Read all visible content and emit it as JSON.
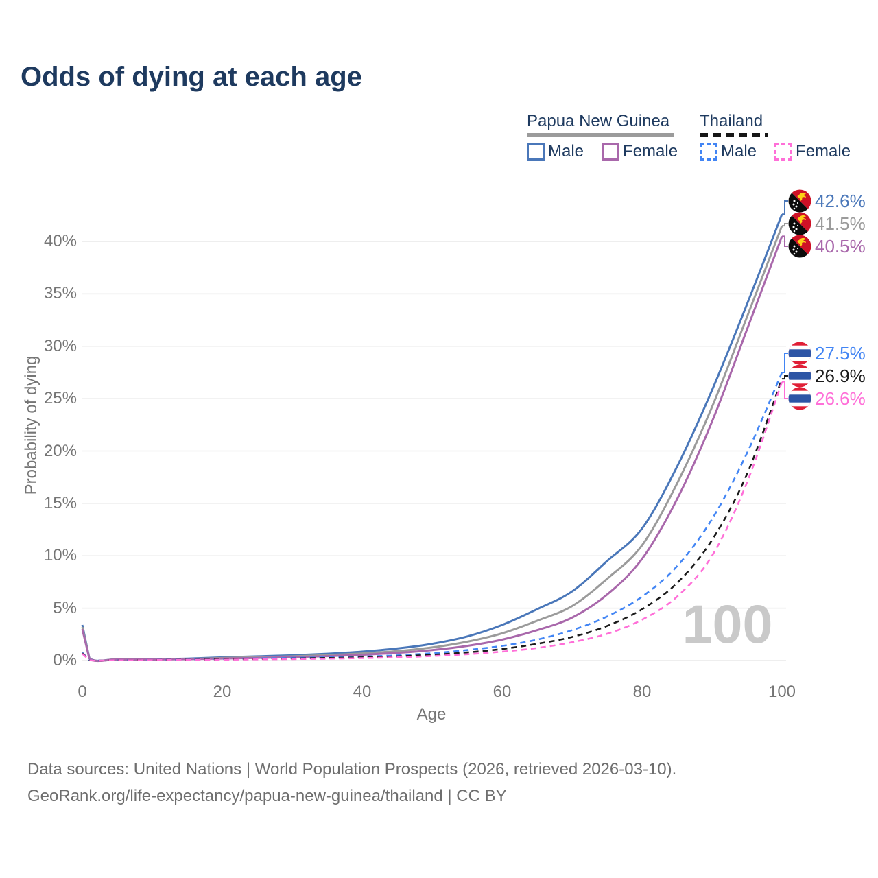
{
  "title": "Odds of dying at each age",
  "legend": {
    "groups": [
      {
        "label": "Papua New Guinea",
        "line_style": "solid",
        "underline_color": "#9b9b9b"
      },
      {
        "label": "Thailand",
        "line_style": "dashed",
        "underline_color": "#161616"
      }
    ],
    "items": [
      {
        "label": "Male",
        "country": "Papua New Guinea",
        "color": "#4a77b9",
        "dashed": false
      },
      {
        "label": "Female",
        "country": "Papua New Guinea",
        "color": "#a968ab",
        "dashed": false
      },
      {
        "label": "Male",
        "country": "Thailand",
        "color": "#4285f4",
        "dashed": true
      },
      {
        "label": "Female",
        "country": "Thailand",
        "color": "#ff6fd8",
        "dashed": true
      }
    ]
  },
  "watermark": "100",
  "footer": {
    "line1": "Data sources: United Nations | World Population Prospects (2026, retrieved 2026-03-10).",
    "line2": "GeoRank.org/life-expectancy/papua-new-guinea/thailand | CC BY"
  },
  "chart_data": {
    "type": "line",
    "title": "Odds of dying at each age",
    "xlabel": "Age",
    "ylabel": "Probability of dying",
    "xlim": [
      0,
      100
    ],
    "ylim": [
      0,
      44
    ],
    "x_ticks": [
      0,
      20,
      40,
      60,
      80,
      100
    ],
    "y_ticks": [
      0,
      5,
      10,
      15,
      20,
      25,
      30,
      35,
      40
    ],
    "y_tick_labels": [
      "0%",
      "5%",
      "10%",
      "15%",
      "20%",
      "25%",
      "30%",
      "35%",
      "40%"
    ],
    "grid": "horizontal-only",
    "legend_position": "top-right",
    "x": [
      0,
      1,
      5,
      10,
      15,
      20,
      25,
      30,
      35,
      40,
      45,
      50,
      55,
      60,
      65,
      70,
      75,
      80,
      85,
      90,
      95,
      100
    ],
    "series": [
      {
        "name": "Papua New Guinea — Male",
        "country": "Papua New Guinea",
        "sex": "male",
        "style": "solid",
        "color": "#4a77b9",
        "end_value": 42.6,
        "end_label": "42.6%",
        "flag": "papua-new-guinea",
        "values": [
          3.4,
          0.25,
          0.12,
          0.12,
          0.18,
          0.3,
          0.4,
          0.5,
          0.65,
          0.85,
          1.15,
          1.6,
          2.3,
          3.4,
          4.9,
          6.6,
          9.5,
          12.6,
          18.5,
          25.8,
          34.0,
          42.6
        ]
      },
      {
        "name": "Papua New Guinea — Both sexes",
        "country": "Papua New Guinea",
        "sex": "both",
        "style": "solid",
        "color": "#9b9b9b",
        "end_value": 41.5,
        "end_label": "41.5%",
        "flag": "papua-new-guinea",
        "values": [
          3.2,
          0.22,
          0.11,
          0.11,
          0.15,
          0.24,
          0.32,
          0.4,
          0.52,
          0.68,
          0.9,
          1.25,
          1.8,
          2.6,
          3.8,
          5.2,
          7.8,
          11.0,
          16.9,
          24.2,
          32.8,
          41.5
        ]
      },
      {
        "name": "Papua New Guinea — Female",
        "country": "Papua New Guinea",
        "sex": "female",
        "style": "solid",
        "color": "#a968ab",
        "end_value": 40.5,
        "end_label": "40.5%",
        "flag": "papua-new-guinea",
        "values": [
          3.0,
          0.2,
          0.1,
          0.1,
          0.13,
          0.19,
          0.25,
          0.32,
          0.42,
          0.55,
          0.73,
          1.0,
          1.4,
          2.0,
          2.9,
          4.1,
          6.3,
          9.7,
          15.4,
          22.8,
          31.6,
          40.5
        ]
      },
      {
        "name": "Thailand — Male",
        "country": "Thailand",
        "sex": "male",
        "style": "dashed",
        "color": "#4285f4",
        "end_value": 27.5,
        "end_label": "27.5%",
        "flag": "thailand",
        "values": [
          0.75,
          0.06,
          0.04,
          0.05,
          0.1,
          0.16,
          0.2,
          0.25,
          0.3,
          0.38,
          0.5,
          0.7,
          1.0,
          1.4,
          2.0,
          2.9,
          4.2,
          6.1,
          9.0,
          13.5,
          19.8,
          27.5
        ]
      },
      {
        "name": "Thailand — Both sexes",
        "country": "Thailand",
        "sex": "both",
        "style": "dashed",
        "color": "#1a1a1a",
        "end_value": 26.9,
        "end_label": "26.9%",
        "flag": "thailand",
        "values": [
          0.7,
          0.05,
          0.035,
          0.045,
          0.08,
          0.12,
          0.15,
          0.19,
          0.24,
          0.3,
          0.4,
          0.55,
          0.78,
          1.1,
          1.6,
          2.25,
          3.3,
          4.9,
          7.4,
          11.5,
          17.8,
          26.9
        ]
      },
      {
        "name": "Thailand — Female",
        "country": "Thailand",
        "sex": "female",
        "style": "dashed",
        "color": "#ff6fd8",
        "end_value": 26.6,
        "end_label": "26.6%",
        "flag": "thailand",
        "values": [
          0.65,
          0.045,
          0.03,
          0.04,
          0.06,
          0.08,
          0.11,
          0.14,
          0.18,
          0.23,
          0.31,
          0.43,
          0.6,
          0.85,
          1.2,
          1.75,
          2.55,
          3.9,
          6.1,
          10.0,
          17.0,
          26.6
        ]
      }
    ]
  }
}
